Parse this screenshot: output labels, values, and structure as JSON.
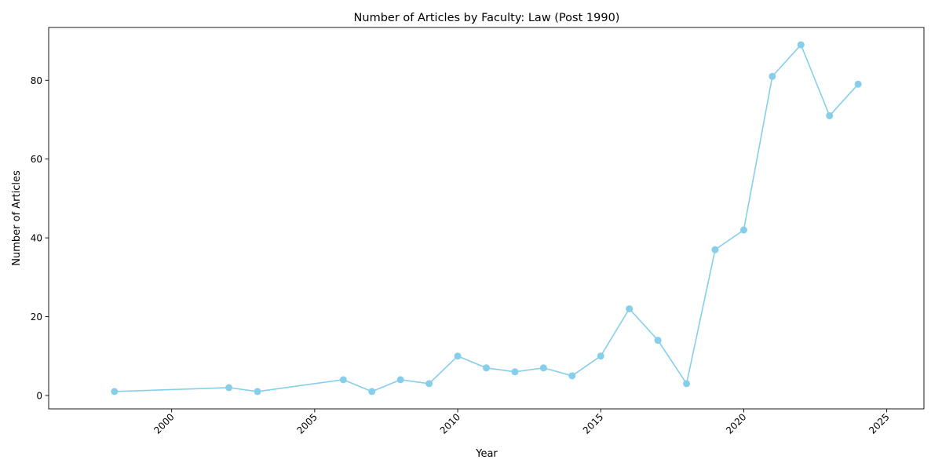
{
  "chart_data": {
    "type": "line",
    "title": "Number of Articles by Faculty: Law (Post 1990)",
    "xlabel": "Year",
    "ylabel": "Number of Articles",
    "x": [
      1998,
      2002,
      2003,
      2006,
      2007,
      2008,
      2009,
      2010,
      2011,
      2012,
      2013,
      2014,
      2015,
      2016,
      2017,
      2018,
      2019,
      2020,
      2021,
      2022,
      2023,
      2024
    ],
    "values": [
      1,
      2,
      1,
      4,
      1,
      4,
      3,
      10,
      7,
      6,
      7,
      5,
      10,
      22,
      14,
      3,
      37,
      42,
      81,
      89,
      71,
      79
    ],
    "xlim": [
      1995.7,
      2026.3
    ],
    "ylim": [
      -3.4,
      93.4
    ],
    "xticks": [
      2000,
      2005,
      2010,
      2015,
      2020,
      2025
    ],
    "yticks": [
      0,
      20,
      40,
      60,
      80
    ],
    "xtick_rotation": 45,
    "grid": false,
    "legend": "none",
    "marker": "circle",
    "line_color": "#87ceeb"
  }
}
